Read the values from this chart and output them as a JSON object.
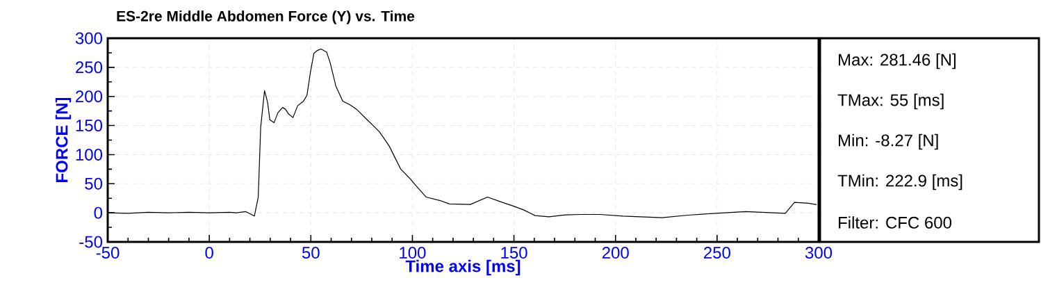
{
  "chart_data": {
    "type": "line",
    "title": "ES-2re Middle Abdomen Force (Y) vs. Time",
    "xlabel": "Time axis [ms]",
    "ylabel": "FORCE [N]",
    "x": [
      -50,
      -40,
      -30,
      -20,
      -10,
      0,
      10,
      13.3,
      18,
      22.2,
      24.1,
      25.3,
      27.2,
      28.7,
      29.8,
      31.9,
      33.8,
      36.1,
      37.5,
      39,
      41.2,
      43.5,
      46.4,
      48.1,
      49.8,
      51.5,
      53.2,
      55,
      57.8,
      59.5,
      62.3,
      65.7,
      69.1,
      72.5,
      77.1,
      80.5,
      83.9,
      88.6,
      92,
      94.3,
      98.8,
      101.7,
      106.8,
      113.7,
      118.2,
      128.5,
      137,
      143.3,
      150.1,
      154.7,
      160.4,
      167.2,
      175.2,
      183.2,
      192.3,
      203.7,
      222.9,
      235.7,
      249.3,
      264.2,
      283.6,
      288.1,
      295,
      299
    ],
    "series": [
      {
        "color": "#000000",
        "values": [
          0,
          -1,
          1,
          0,
          1,
          0,
          1,
          0,
          2,
          -5.6,
          27,
          146.6,
          210,
          190,
          160,
          155,
          172,
          181,
          178,
          170,
          163.7,
          184,
          192,
          202,
          242,
          274,
          279,
          281.46,
          276,
          258,
          218,
          192,
          186,
          178,
          162,
          150.5,
          138.6,
          114.7,
          90.8,
          74.9,
          58.9,
          47,
          27,
          21,
          15.2,
          14.3,
          27,
          19.1,
          11.1,
          5.1,
          -4.8,
          -6.8,
          -3.6,
          -2.8,
          -2.8,
          -5.6,
          -8.27,
          -4,
          -0.8,
          2,
          -0.8,
          17.9,
          16.4,
          14
        ]
      }
    ],
    "xlim": [
      -50,
      300
    ],
    "ylim": [
      -50,
      300
    ],
    "xticks": [
      -50,
      0,
      50,
      100,
      150,
      200,
      250,
      300
    ],
    "yticks": [
      -50,
      0,
      50,
      100,
      150,
      200,
      250,
      300
    ],
    "grid": true,
    "annotations": [
      "Max:  281.46 [N]",
      "TMax:        55 [ms]",
      "Min:    -8.27 [N]",
      "TMin:   222.9 [ms]",
      "Filter: CFC 600"
    ]
  }
}
